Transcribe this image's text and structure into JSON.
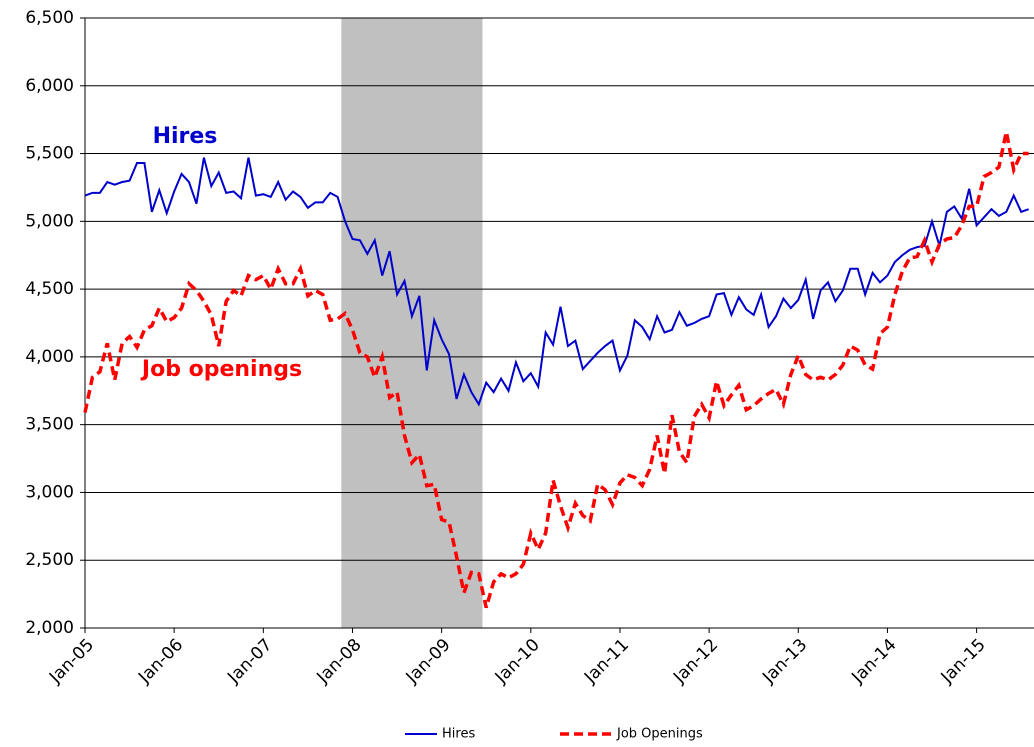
{
  "chart_data": {
    "type": "line",
    "categories": [
      "Jan-05",
      null,
      null,
      null,
      null,
      null,
      null,
      null,
      null,
      null,
      null,
      null,
      "Jan-06",
      null,
      null,
      null,
      null,
      null,
      null,
      null,
      null,
      null,
      null,
      null,
      "Jan-07",
      null,
      null,
      null,
      null,
      null,
      null,
      null,
      null,
      null,
      null,
      null,
      "Jan-08",
      null,
      null,
      null,
      null,
      null,
      null,
      null,
      null,
      null,
      null,
      null,
      "Jan-09",
      null,
      null,
      null,
      null,
      null,
      null,
      null,
      null,
      null,
      null,
      null,
      "Jan-10",
      null,
      null,
      null,
      null,
      null,
      null,
      null,
      null,
      null,
      null,
      null,
      "Jan-11",
      null,
      null,
      null,
      null,
      null,
      null,
      null,
      null,
      null,
      null,
      null,
      "Jan-12",
      null,
      null,
      null,
      null,
      null,
      null,
      null,
      null,
      null,
      null,
      null,
      "Jan-13",
      null,
      null,
      null,
      null,
      null,
      null,
      null,
      null,
      null,
      null,
      null,
      "Jan-14",
      null,
      null,
      null,
      null,
      null,
      null,
      null,
      null,
      null,
      null,
      null,
      "Jan-15",
      null,
      null,
      null,
      null,
      null,
      null,
      null
    ],
    "series": [
      {
        "name": "Hires",
        "color": "#0000cc",
        "dash": false,
        "annotation": "Hires",
        "values": [
          5190,
          5210,
          5210,
          5290,
          5270,
          5290,
          5300,
          5430,
          5430,
          5070,
          5230,
          5060,
          5220,
          5350,
          5290,
          5130,
          5470,
          5260,
          5360,
          5210,
          5220,
          5170,
          5470,
          5190,
          5200,
          5180,
          5290,
          5160,
          5220,
          5180,
          5100,
          5140,
          5140,
          5210,
          5180,
          5000,
          4870,
          4860,
          4760,
          4860,
          4600,
          4780,
          4460,
          4560,
          4300,
          4450,
          3900,
          4270,
          4130,
          4020,
          3690,
          3870,
          3740,
          3650,
          3810,
          3740,
          3840,
          3750,
          3960,
          3820,
          3880,
          3780,
          4180,
          4090,
          4370,
          4080,
          4120,
          3910,
          3970,
          4030,
          4080,
          4120,
          3900,
          4010,
          4270,
          4220,
          4130,
          4300,
          4180,
          4200,
          4330,
          4230,
          4250,
          4280,
          4300,
          4460,
          4470,
          4310,
          4440,
          4350,
          4310,
          4460,
          4220,
          4300,
          4430,
          4360,
          4420,
          4570,
          4280,
          4490,
          4550,
          4410,
          4490,
          4650,
          4650,
          4460,
          4620,
          4550,
          4600,
          4700,
          4750,
          4790,
          4810,
          4820,
          5000,
          4820,
          5070,
          5110,
          5020,
          5240,
          4970,
          5030,
          5090,
          5040,
          5070,
          5190,
          5070,
          5090
        ]
      },
      {
        "name": "Job Openings",
        "color": "#ff0000",
        "dash": true,
        "annotation": "Job openings",
        "values": [
          3590,
          3850,
          3890,
          4100,
          3830,
          4100,
          4150,
          4070,
          4200,
          4230,
          4360,
          4260,
          4290,
          4360,
          4540,
          4490,
          4410,
          4310,
          4080,
          4410,
          4490,
          4450,
          4600,
          4570,
          4600,
          4500,
          4650,
          4540,
          4540,
          4650,
          4450,
          4490,
          4460,
          4270,
          4280,
          4320,
          4200,
          4030,
          4000,
          3850,
          4000,
          3700,
          3740,
          3420,
          3220,
          3280,
          3050,
          3060,
          2800,
          2780,
          2530,
          2260,
          2410,
          2400,
          2150,
          2340,
          2400,
          2370,
          2400,
          2470,
          2700,
          2580,
          2700,
          3090,
          2900,
          2740,
          2920,
          2830,
          2790,
          3060,
          3020,
          2910,
          3070,
          3130,
          3110,
          3050,
          3170,
          3420,
          3140,
          3570,
          3300,
          3220,
          3560,
          3650,
          3550,
          3820,
          3640,
          3720,
          3790,
          3610,
          3640,
          3690,
          3730,
          3760,
          3650,
          3870,
          4010,
          3870,
          3830,
          3850,
          3830,
          3870,
          3940,
          4080,
          4050,
          3940,
          3910,
          4170,
          4220,
          4460,
          4630,
          4730,
          4740,
          4860,
          4700,
          4830,
          4870,
          4880,
          4970,
          5110,
          5110,
          5330,
          5360,
          5400,
          5660,
          5380,
          5500,
          5500
        ]
      }
    ],
    "shaded_span": [
      34.5,
      53.5
    ],
    "shade_color": "#c0c0c0",
    "ylim": [
      2000,
      6500
    ],
    "yticks": [
      {
        "value": 2000,
        "label": "2,000"
      },
      {
        "value": 2500,
        "label": "2,500"
      },
      {
        "value": 3000,
        "label": "3,000"
      },
      {
        "value": 3500,
        "label": "3,500"
      },
      {
        "value": 4000,
        "label": "4,000"
      },
      {
        "value": 4500,
        "label": "4,500"
      },
      {
        "value": 5000,
        "label": "5,000"
      },
      {
        "value": 5500,
        "label": "5,500"
      },
      {
        "value": 6000,
        "label": "6,000"
      },
      {
        "value": 6500,
        "label": "6,500"
      }
    ],
    "grid": true
  }
}
